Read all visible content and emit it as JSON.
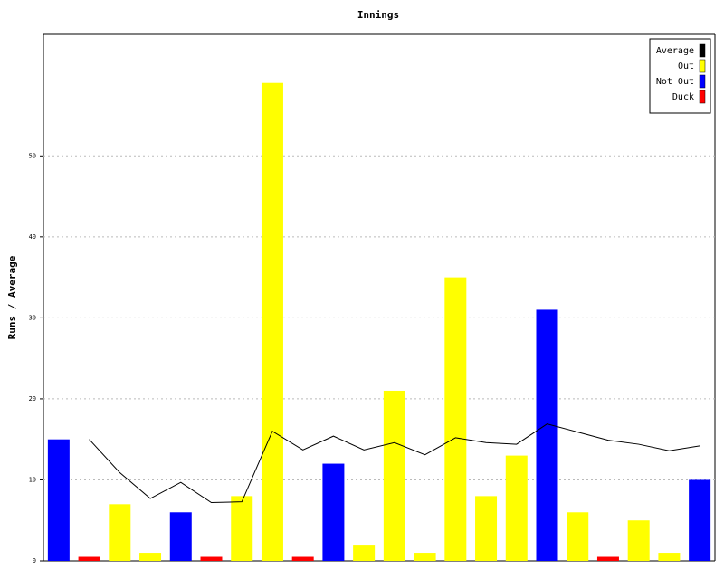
{
  "chart_data": {
    "type": "bar",
    "title": "Innings",
    "y_label": "Runs / Average",
    "ylim": [
      0,
      65
    ],
    "yticks": [
      0,
      10,
      20,
      30,
      40,
      50
    ],
    "grid": true,
    "legend": "top-right",
    "series": [
      {
        "name": "Average",
        "color": "#000000",
        "type": "line",
        "values": [
          null,
          15,
          10.9,
          7.7,
          9.7,
          7.2,
          7.3,
          16,
          13.7,
          15.4,
          13.7,
          14.6,
          13.1,
          15.2,
          14.6,
          14.4,
          16.9,
          15.9,
          14.9,
          14.4,
          13.6,
          14.2
        ]
      },
      {
        "name": "Out",
        "color": "#ffff00",
        "values": [
          null,
          null,
          7,
          1,
          null,
          null,
          8,
          59,
          null,
          null,
          2,
          21,
          1,
          35,
          8,
          13,
          null,
          6,
          null,
          5,
          1,
          null
        ]
      },
      {
        "name": "Not Out",
        "color": "#0000ff",
        "values": [
          15,
          null,
          null,
          null,
          6,
          null,
          null,
          null,
          null,
          12,
          null,
          null,
          null,
          null,
          null,
          null,
          31,
          null,
          null,
          null,
          null,
          10
        ]
      },
      {
        "name": "Duck",
        "color": "#ff0000",
        "values": [
          null,
          0.5,
          null,
          null,
          null,
          0.5,
          null,
          null,
          0.5,
          null,
          null,
          null,
          null,
          null,
          null,
          null,
          null,
          null,
          0.5,
          null,
          null,
          null
        ]
      }
    ]
  }
}
